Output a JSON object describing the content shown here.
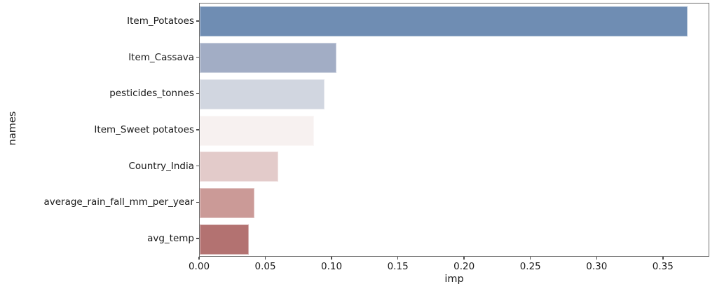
{
  "figure": {
    "background": "#ffffff",
    "text_color": "#1a1a1a",
    "spine_color": "#6e6e6e",
    "tick_color": "#4d4d4d"
  },
  "chart_data": {
    "type": "bar",
    "orientation": "horizontal",
    "title": "",
    "xlabel": "imp",
    "ylabel": "names",
    "categories": [
      "Item_Potatoes",
      "Item_Cassava",
      "pesticides_tonnes",
      "Item_Sweet potatoes",
      "Country_India",
      "average_rain_fall_mm_per_year",
      "avg_temp"
    ],
    "values": [
      0.368,
      0.103,
      0.094,
      0.086,
      0.059,
      0.041,
      0.037
    ],
    "bar_colors": [
      "#6f8db3",
      "#a2adc5",
      "#d1d6e0",
      "#f7f1f0",
      "#e3cbca",
      "#cb9a97",
      "#b37271"
    ],
    "xlim": [
      0,
      0.385
    ],
    "xticks": [
      "0.00",
      "0.05",
      "0.10",
      "0.15",
      "0.20",
      "0.25",
      "0.30",
      "0.35"
    ],
    "xtick_values": [
      0.0,
      0.05,
      0.1,
      0.15,
      0.2,
      0.25,
      0.3,
      0.35
    ],
    "grid": false,
    "legend": null
  }
}
